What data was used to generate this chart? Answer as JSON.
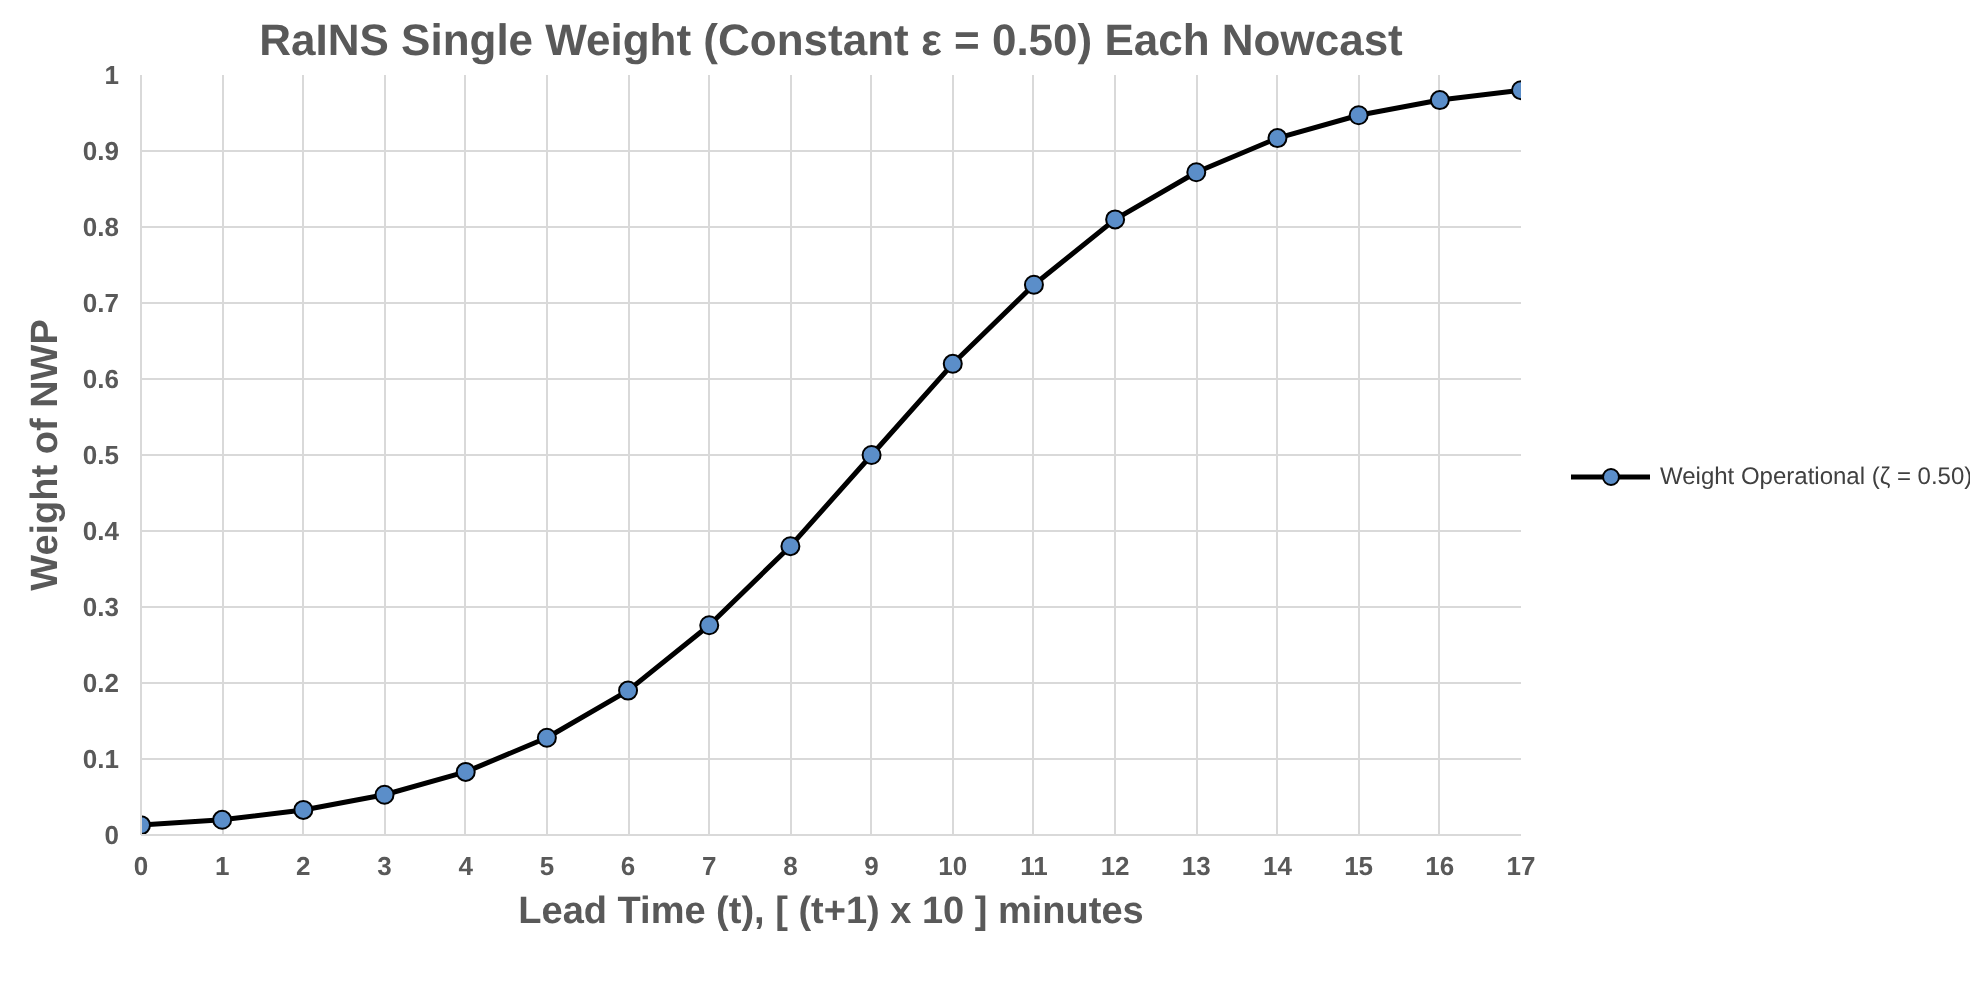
{
  "chart_data": {
    "type": "line",
    "title": "RaINS Single Weight (Constant ε = 0.50) Each Nowcast",
    "xlabel": "Lead Time (t), [ (t+1) x 10 ] minutes",
    "ylabel": "Weight of NWP",
    "x": [
      0,
      1,
      2,
      3,
      4,
      5,
      6,
      7,
      8,
      9,
      10,
      11,
      12,
      13,
      14,
      15,
      16,
      17
    ],
    "series": [
      {
        "name": "Weight Operational (ζ = 0.50)",
        "color": "#000000",
        "values": [
          0.013,
          0.02,
          0.033,
          0.053,
          0.083,
          0.128,
          0.19,
          0.276,
          0.38,
          0.5,
          0.62,
          0.724,
          0.81,
          0.872,
          0.917,
          0.947,
          0.967,
          0.98
        ]
      }
    ],
    "xlim": [
      0,
      17
    ],
    "ylim": [
      0,
      1
    ],
    "xticks": [
      0,
      1,
      2,
      3,
      4,
      5,
      6,
      7,
      8,
      9,
      10,
      11,
      12,
      13,
      14,
      15,
      16,
      17
    ],
    "yticks": [
      0,
      0.1,
      0.2,
      0.3,
      0.4,
      0.5,
      0.6,
      0.7,
      0.8,
      0.9,
      1
    ],
    "grid": true,
    "legend": "right",
    "marker": "circle",
    "line_style": "solid"
  }
}
